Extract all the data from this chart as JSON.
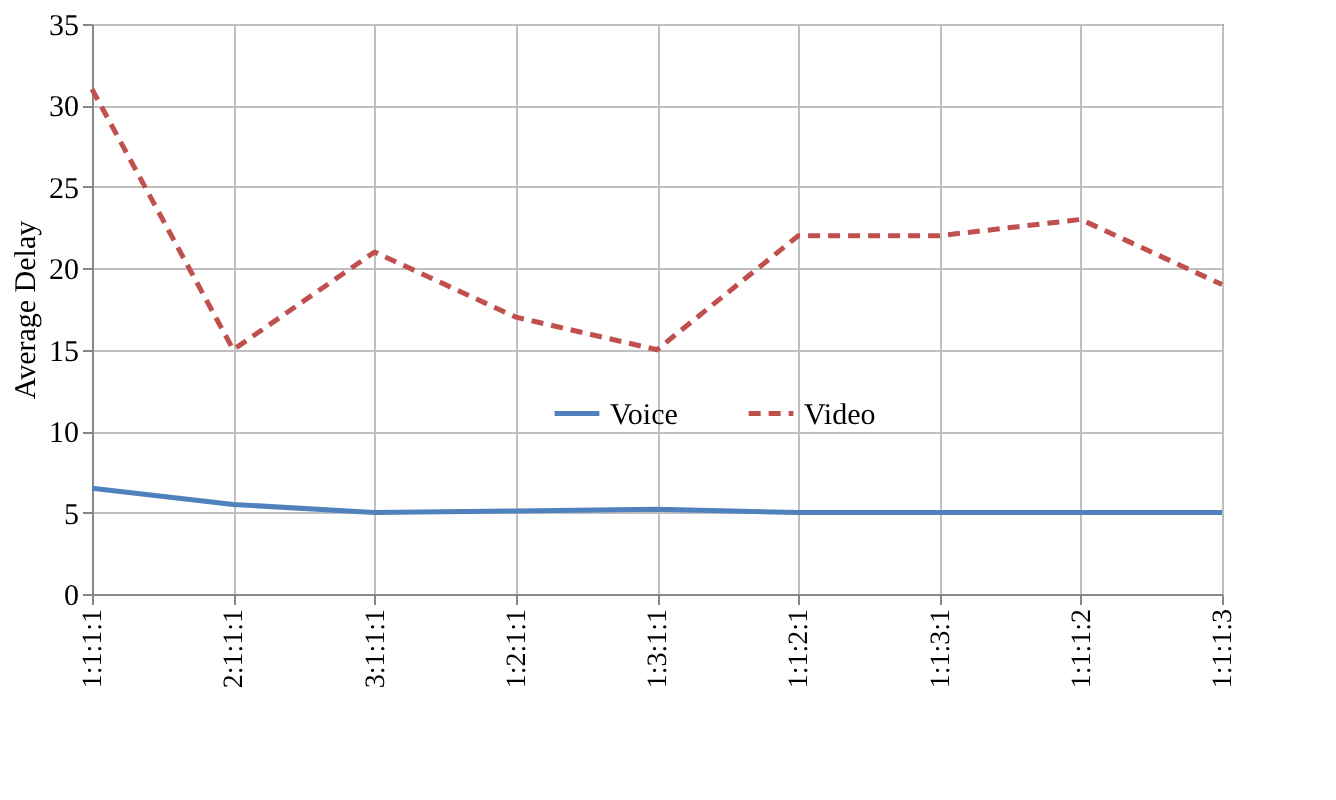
{
  "chart_data": {
    "type": "line",
    "ylabel": "Average Delay",
    "categories": [
      "1:1:1:1",
      "2:1:1:1",
      "3:1:1:1",
      "1:2:1:1",
      "1:3:1:1",
      "1:1:2:1",
      "1:1:3:1",
      "1:1:1:2",
      "1:1:1:3"
    ],
    "series": [
      {
        "name": "Voice",
        "color": "#4f81bd",
        "line_style": "solid",
        "values": [
          6.5,
          5.5,
          5,
          5.1,
          5.2,
          5,
          5,
          5,
          5
        ]
      },
      {
        "name": "Video",
        "color": "#c0504d",
        "line_style": "dashed",
        "values": [
          31,
          15,
          21,
          17,
          15,
          22,
          22,
          23,
          19
        ]
      }
    ],
    "ylim": [
      0,
      35
    ],
    "yticks": [
      0,
      5,
      10,
      15,
      20,
      25,
      30,
      35
    ],
    "grid": true,
    "legend": "center",
    "marker": "none"
  }
}
